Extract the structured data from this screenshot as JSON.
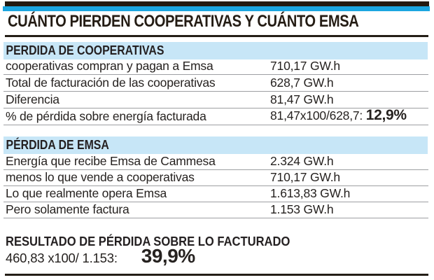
{
  "header": {
    "title": "CUÁNTO PIERDEN COOPERATIVAS Y CUÁNTO EMSA"
  },
  "sections": [
    {
      "header": "PERDIDA DE COOPERATIVAS",
      "rows": [
        {
          "label": "cooperativas compran y pagan a Emsa",
          "value": "710,17 GW.h"
        },
        {
          "label": "Total de facturación de las cooperativas",
          "value": "628,7 GW.h"
        },
        {
          "label": "Diferencia",
          "value": "81,47 GW.h"
        },
        {
          "label": "% de pérdida sobre energía facturada",
          "value": "81,47x100/628,7: ",
          "value_strong": "12,9%"
        }
      ]
    },
    {
      "header": "PÉRDIDA DE EMSA",
      "rows": [
        {
          "label": "Energía que recibe Emsa de Cammesa",
          "value": "2.324 GW.h"
        },
        {
          "label": "menos lo que vende a cooperativas",
          "value": "710,17 GW.h"
        },
        {
          "label": "Lo que realmente opera Emsa",
          "value": "1.613,83 GW.h"
        },
        {
          "label": "Pero solamente factura",
          "value": "1.153 GW.h"
        }
      ]
    }
  ],
  "result": {
    "heading": "RESULTADO DE PÉRDIDA SOBRE LO FACTURADO",
    "formula": "460,83 x100/ 1.153:",
    "value": "39,9%"
  },
  "colors": {
    "accent_cyan": "#1ca6e0",
    "band_blue": "#c7e6f7",
    "ink": "#262220",
    "rule_gray": "#9d9fa2"
  },
  "chart_data": {
    "type": "table",
    "title": "CUÁNTO PIERDEN COOPERATIVAS Y CUÁNTO EMSA",
    "unit": "GW.h",
    "tables": [
      {
        "section": "PERDIDA DE COOPERATIVAS",
        "rows": [
          {
            "label": "cooperativas compran y pagan a Emsa",
            "value_gwh": 710.17
          },
          {
            "label": "Total de facturación de las cooperativas",
            "value_gwh": 628.7
          },
          {
            "label": "Diferencia",
            "value_gwh": 81.47
          },
          {
            "label": "% de pérdida sobre energía facturada",
            "formula": "81,47x100/628,7",
            "value_pct": 12.9
          }
        ]
      },
      {
        "section": "PÉRDIDA DE EMSA",
        "rows": [
          {
            "label": "Energía que recibe Emsa de Cammesa",
            "value_gwh": 2324
          },
          {
            "label": "menos lo que vende a cooperativas",
            "value_gwh": 710.17
          },
          {
            "label": "Lo que realmente opera Emsa",
            "value_gwh": 1613.83
          },
          {
            "label": "Pero solamente factura",
            "value_gwh": 1153
          }
        ]
      }
    ],
    "result": {
      "label": "RESULTADO DE PÉRDIDA SOBRE LO FACTURADO",
      "formula": "460,83 x100/ 1.153",
      "value_pct": 39.9
    }
  }
}
